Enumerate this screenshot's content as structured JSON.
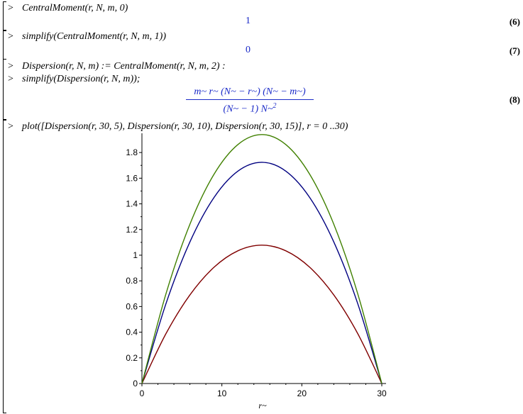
{
  "worksheet": {
    "prompt_symbol": ">",
    "groups": [
      {
        "input": "CentralMoment(r, N, m, 0)",
        "output": "1",
        "label": "(6)"
      },
      {
        "input": "simplify(CentralMoment(r, N, m, 1))",
        "output": "0",
        "label": "(7)"
      },
      {
        "inputs": [
          "Dispersion(r, N, m) := CentralMoment(r, N, m, 2) :",
          "simplify(Dispersion(r, N, m));"
        ],
        "output_numerator": "m~ r~ (N~ − r~) (N~ − m~)",
        "output_denominator": "(N~ − 1) N~",
        "output_exponent": "2",
        "label": "(8)"
      },
      {
        "input": "plot([Dispersion(r, 30, 5), Dispersion(r, 30, 10), Dispersion(r, 30, 15)], r = 0 ..30)"
      }
    ]
  },
  "chart_data": {
    "type": "line",
    "xlabel": "r~",
    "xlim": [
      0,
      30
    ],
    "ylim": [
      0,
      1.95
    ],
    "xticks": [
      0,
      10,
      20,
      30
    ],
    "yticks": [
      0,
      0.2,
      0.4,
      0.6,
      0.8,
      1,
      1.2,
      1.4,
      1.6,
      1.8
    ],
    "ytick_labels": [
      "0",
      "0.2",
      "0.4",
      "0.6",
      "0.8",
      "1",
      "1.2",
      "1.4",
      "1.6",
      "1.8"
    ],
    "xtick_labels": [
      "0",
      "10",
      "20",
      "30"
    ],
    "series": [
      {
        "m": 5,
        "color": "#800000",
        "x": [
          0,
          3,
          6,
          9,
          12,
          15,
          18,
          21,
          24,
          27,
          30
        ],
        "y": [
          0,
          0.388,
          0.69,
          0.905,
          1.034,
          1.078,
          1.034,
          0.905,
          0.69,
          0.388,
          0
        ]
      },
      {
        "m": 10,
        "color": "#000080",
        "x": [
          0,
          3,
          6,
          9,
          12,
          15,
          18,
          21,
          24,
          27,
          30
        ],
        "y": [
          0,
          0.621,
          1.103,
          1.448,
          1.655,
          1.724,
          1.655,
          1.448,
          1.103,
          0.621,
          0
        ]
      },
      {
        "m": 15,
        "color": "#408000",
        "x": [
          0,
          3,
          6,
          9,
          12,
          15,
          18,
          21,
          24,
          27,
          30
        ],
        "y": [
          0,
          0.698,
          1.241,
          1.629,
          1.862,
          1.94,
          1.862,
          1.629,
          1.241,
          0.698,
          0
        ]
      }
    ]
  }
}
